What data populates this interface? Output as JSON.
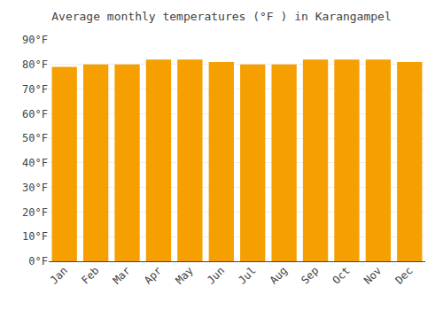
{
  "chart_data": {
    "type": "bar",
    "title": "Average monthly temperatures (°F ) in Karangampel",
    "categories": [
      "Jan",
      "Feb",
      "Mar",
      "Apr",
      "May",
      "Jun",
      "Jul",
      "Aug",
      "Sep",
      "Oct",
      "Nov",
      "Dec"
    ],
    "values": [
      79,
      80,
      80,
      82,
      82,
      81,
      80,
      80,
      82,
      82,
      82,
      81
    ],
    "color": "#F5A000",
    "ylim": [
      0,
      90
    ],
    "yticks": [
      {
        "value": 0,
        "label": "0°F"
      },
      {
        "value": 10,
        "label": "10°F"
      },
      {
        "value": 20,
        "label": "20°F"
      },
      {
        "value": 30,
        "label": "30°F"
      },
      {
        "value": 40,
        "label": "40°F"
      },
      {
        "value": 50,
        "label": "50°F"
      },
      {
        "value": 60,
        "label": "60°F"
      },
      {
        "value": 70,
        "label": "70°F"
      },
      {
        "value": 80,
        "label": "80°F"
      },
      {
        "value": 90,
        "label": "90°F"
      }
    ],
    "grid": true
  }
}
